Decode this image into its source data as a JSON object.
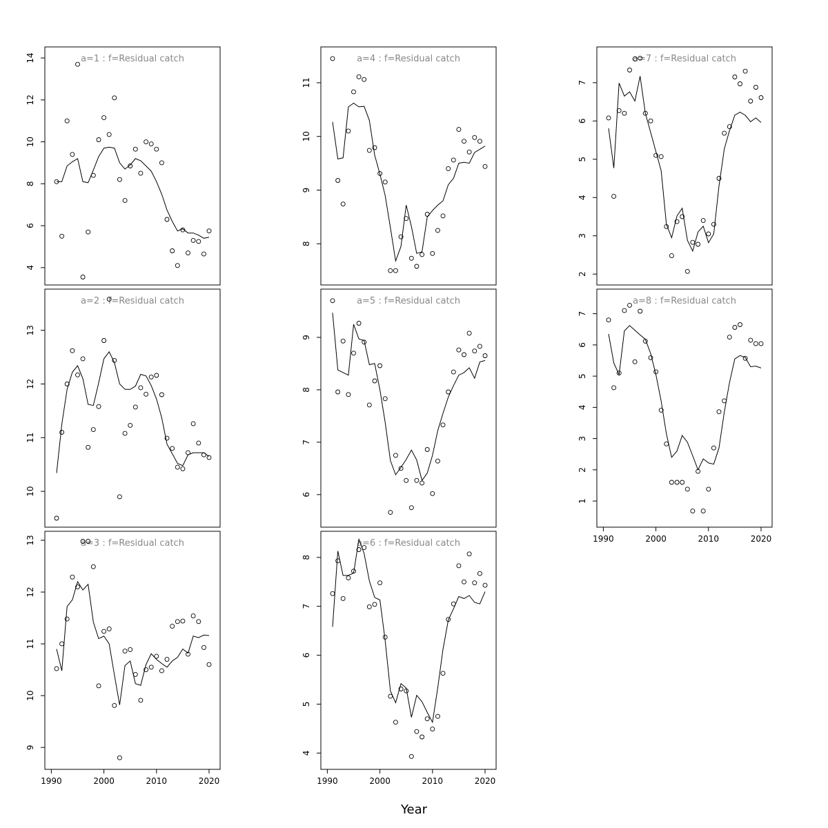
{
  "figure": {
    "xlabel": "Year"
  },
  "chart_data": [
    {
      "type": "scatter",
      "title": "a=1  :  f=Residual catch",
      "xlim": [
        1991,
        2020
      ],
      "ylim": [
        3.6,
        14.1
      ],
      "yticks": [
        4,
        6,
        8,
        10,
        12,
        14
      ],
      "xticks": [
        1990,
        2000,
        2010,
        2020
      ],
      "show_xaxis": false,
      "points": {
        "x": [
          1991,
          1992,
          1993,
          1994,
          1995,
          1996,
          1997,
          1998,
          1999,
          2000,
          2001,
          2002,
          2003,
          2004,
          2005,
          2006,
          2007,
          2008,
          2009,
          2010,
          2011,
          2012,
          2013,
          2014,
          2015,
          2016,
          2017,
          2018,
          2019,
          2020
        ],
        "y": [
          8.1,
          5.5,
          11.0,
          9.4,
          13.7,
          3.55,
          5.7,
          8.4,
          10.1,
          11.15,
          10.35,
          12.1,
          8.2,
          7.2,
          8.85,
          9.65,
          8.5,
          10.0,
          9.9,
          9.65,
          9.0,
          6.3,
          4.8,
          4.1,
          5.8,
          4.7,
          5.3,
          5.25,
          4.65,
          5.75
        ]
      },
      "line": {
        "x": [
          1991,
          1992,
          1993,
          1994,
          1995,
          1996,
          1997,
          1998,
          1999,
          2000,
          2001,
          2002,
          2003,
          2004,
          2005,
          2006,
          2007,
          2008,
          2009,
          2010,
          2011,
          2012,
          2013,
          2014,
          2015,
          2016,
          2017,
          2018,
          2019,
          2020
        ],
        "y": [
          8.1,
          8.1,
          8.85,
          9.05,
          9.2,
          8.1,
          8.05,
          8.65,
          9.3,
          9.7,
          9.75,
          9.7,
          9.0,
          8.7,
          8.9,
          9.2,
          9.1,
          8.85,
          8.6,
          8.1,
          7.5,
          6.75,
          6.2,
          5.75,
          5.85,
          5.65,
          5.65,
          5.55,
          5.4,
          5.45
        ]
      }
    },
    {
      "type": "scatter",
      "title": "a=2  :  f=Residual catch",
      "xlim": [
        1991,
        2020
      ],
      "ylim": [
        9.5,
        13.6
      ],
      "yticks": [
        10,
        11,
        12,
        13
      ],
      "xticks": [
        1990,
        2000,
        2010,
        2020
      ],
      "show_xaxis": false,
      "points": {
        "x": [
          1991,
          1992,
          1993,
          1994,
          1995,
          1996,
          1997,
          1998,
          1999,
          2000,
          2001,
          2002,
          2003,
          2004,
          2005,
          2006,
          2007,
          2008,
          2009,
          2010,
          2011,
          2012,
          2013,
          2014,
          2015,
          2016,
          2017,
          2018,
          2019,
          2020
        ],
        "y": [
          9.5,
          11.1,
          12.0,
          12.62,
          12.17,
          12.47,
          10.82,
          11.15,
          11.58,
          12.81,
          13.58,
          12.44,
          9.9,
          11.08,
          11.23,
          11.57,
          11.93,
          11.81,
          12.13,
          12.16,
          11.8,
          10.99,
          10.8,
          10.45,
          10.42,
          10.72,
          11.26,
          10.9,
          10.68,
          10.63
        ]
      },
      "line": {
        "x": [
          1991,
          1992,
          1993,
          1994,
          1995,
          1996,
          1997,
          1998,
          1999,
          2000,
          2001,
          2002,
          2003,
          2004,
          2005,
          2006,
          2007,
          2008,
          2009,
          2010,
          2011,
          2012,
          2013,
          2014,
          2015,
          2016,
          2017,
          2018,
          2019,
          2020
        ],
        "y": [
          10.34,
          11.25,
          11.9,
          12.22,
          12.34,
          12.1,
          11.62,
          11.6,
          12.02,
          12.47,
          12.6,
          12.4,
          12.0,
          11.9,
          11.9,
          11.96,
          12.18,
          12.15,
          11.97,
          11.72,
          11.37,
          10.88,
          10.7,
          10.52,
          10.48,
          10.68,
          10.72,
          10.72,
          10.72,
          10.65
        ]
      }
    },
    {
      "type": "scatter",
      "title": "a=3  :  f=Residual catch",
      "xlim": [
        1991,
        2020
      ],
      "ylim": [
        8.75,
        13.0
      ],
      "yticks": [
        9,
        10,
        11,
        12,
        13
      ],
      "xticks": [
        1990,
        2000,
        2010,
        2020
      ],
      "show_xaxis": true,
      "points": {
        "x": [
          1991,
          1992,
          1993,
          1994,
          1995,
          1996,
          1997,
          1998,
          1999,
          2000,
          2001,
          2002,
          2003,
          2004,
          2005,
          2006,
          2007,
          2008,
          2009,
          2010,
          2011,
          2012,
          2013,
          2014,
          2015,
          2016,
          2017,
          2018,
          2019,
          2020
        ],
        "y": [
          10.52,
          11.0,
          11.48,
          12.29,
          12.1,
          12.98,
          12.98,
          12.49,
          10.19,
          11.24,
          11.29,
          9.81,
          8.8,
          10.86,
          10.89,
          10.41,
          9.91,
          10.5,
          10.55,
          10.76,
          10.48,
          10.7,
          11.34,
          11.43,
          11.44,
          10.8,
          11.54,
          11.43,
          10.93,
          10.6
        ]
      },
      "line": {
        "x": [
          1991,
          1992,
          1993,
          1994,
          1995,
          1996,
          1997,
          1998,
          1999,
          2000,
          2001,
          2002,
          2003,
          2004,
          2005,
          2006,
          2007,
          2008,
          2009,
          2010,
          2011,
          2012,
          2013,
          2014,
          2015,
          2016,
          2017,
          2018,
          2019,
          2020
        ],
        "y": [
          10.9,
          10.48,
          11.72,
          11.85,
          12.2,
          12.04,
          12.15,
          11.42,
          11.1,
          11.15,
          11.0,
          10.4,
          9.82,
          10.58,
          10.67,
          10.23,
          10.2,
          10.6,
          10.81,
          10.7,
          10.62,
          10.55,
          10.67,
          10.74,
          10.9,
          10.82,
          11.15,
          11.12,
          11.17,
          11.16
        ]
      }
    },
    {
      "type": "scatter",
      "title": "a=4  :  f=Residual catch",
      "xlim": [
        1991,
        2020
      ],
      "ylim": [
        7.4,
        11.5
      ],
      "yticks": [
        8,
        9,
        10,
        11
      ],
      "xticks": [
        1990,
        2000,
        2010,
        2020
      ],
      "show_xaxis": false,
      "points": {
        "x": [
          1991,
          1992,
          1993,
          1994,
          1995,
          1996,
          1997,
          1998,
          1999,
          2000,
          2001,
          2002,
          2003,
          2004,
          2005,
          2006,
          2007,
          2008,
          2009,
          2010,
          2011,
          2012,
          2013,
          2014,
          2015,
          2016,
          2017,
          2018,
          2019,
          2020
        ],
        "y": [
          11.45,
          9.18,
          8.74,
          10.1,
          10.83,
          11.11,
          11.06,
          9.74,
          9.79,
          9.31,
          9.15,
          7.5,
          7.5,
          8.13,
          8.47,
          7.73,
          7.58,
          7.8,
          8.55,
          7.82,
          8.25,
          8.52,
          9.4,
          9.56,
          10.13,
          9.91,
          9.71,
          9.98,
          9.91,
          9.44
        ]
      },
      "line": {
        "x": [
          1991,
          1992,
          1993,
          1994,
          1995,
          1996,
          1997,
          1998,
          1999,
          2000,
          2001,
          2002,
          2003,
          2004,
          2005,
          2006,
          2007,
          2008,
          2009,
          2010,
          2011,
          2012,
          2013,
          2014,
          2015,
          2016,
          2017,
          2018,
          2019,
          2020
        ],
        "y": [
          10.27,
          9.58,
          9.6,
          10.55,
          10.62,
          10.55,
          10.56,
          10.3,
          9.65,
          9.3,
          8.9,
          8.3,
          7.68,
          7.95,
          8.72,
          8.32,
          7.82,
          7.85,
          8.5,
          8.62,
          8.72,
          8.8,
          9.1,
          9.22,
          9.5,
          9.52,
          9.5,
          9.7,
          9.76,
          9.82
        ]
      }
    },
    {
      "type": "scatter",
      "title": "a=5  :  f=Residual catch",
      "xlim": [
        1991,
        2020
      ],
      "ylim": [
        5.55,
        9.75
      ],
      "yticks": [
        6,
        7,
        8,
        9
      ],
      "xticks": [
        1990,
        2000,
        2010,
        2020
      ],
      "show_xaxis": false,
      "points": {
        "x": [
          1991,
          1992,
          1993,
          1994,
          1995,
          1996,
          1997,
          1998,
          1999,
          2000,
          2001,
          2002,
          2003,
          2004,
          2005,
          2006,
          2007,
          2008,
          2009,
          2010,
          2011,
          2012,
          2013,
          2014,
          2015,
          2016,
          2017,
          2018,
          2019,
          2020
        ],
        "y": [
          9.7,
          7.96,
          8.93,
          7.91,
          8.7,
          9.27,
          8.91,
          7.71,
          8.17,
          8.46,
          7.83,
          5.66,
          6.75,
          6.5,
          6.27,
          5.75,
          6.27,
          6.22,
          6.86,
          6.02,
          6.64,
          7.33,
          7.96,
          8.34,
          8.76,
          8.67,
          9.08,
          8.74,
          8.83,
          8.65
        ]
      },
      "line": {
        "x": [
          1991,
          1992,
          1993,
          1994,
          1995,
          1996,
          1997,
          1998,
          1999,
          2000,
          2001,
          2002,
          2003,
          2004,
          2005,
          2006,
          2007,
          2008,
          2009,
          2010,
          2011,
          2012,
          2013,
          2014,
          2015,
          2016,
          2017,
          2018,
          2019,
          2020
        ],
        "y": [
          9.47,
          8.38,
          8.33,
          8.28,
          9.25,
          8.97,
          8.94,
          8.48,
          8.5,
          8.0,
          7.38,
          6.65,
          6.38,
          6.52,
          6.67,
          6.85,
          6.66,
          6.27,
          6.41,
          6.75,
          7.22,
          7.55,
          7.86,
          8.08,
          8.28,
          8.33,
          8.42,
          8.22,
          8.53,
          8.56
        ]
      }
    },
    {
      "type": "scatter",
      "title": "a=6  :  f=Residual catch",
      "xlim": [
        1991,
        2020
      ],
      "ylim": [
        3.85,
        8.35
      ],
      "yticks": [
        4,
        5,
        6,
        7,
        8
      ],
      "xticks": [
        1990,
        2000,
        2010,
        2020
      ],
      "show_xaxis": true,
      "points": {
        "x": [
          1991,
          1992,
          1993,
          1994,
          1995,
          1996,
          1997,
          1998,
          1999,
          2000,
          2001,
          2002,
          2003,
          2004,
          2005,
          2006,
          2007,
          2008,
          2009,
          2010,
          2011,
          2012,
          2013,
          2014,
          2015,
          2016,
          2017,
          2018,
          2019,
          2020
        ],
        "y": [
          7.26,
          7.93,
          7.16,
          7.58,
          7.72,
          8.16,
          8.2,
          6.99,
          7.04,
          7.48,
          6.37,
          5.16,
          4.63,
          5.31,
          5.27,
          3.93,
          4.44,
          4.33,
          4.7,
          4.49,
          4.75,
          5.63,
          6.73,
          7.05,
          7.83,
          7.5,
          8.07,
          7.48,
          7.67,
          7.43
        ]
      },
      "line": {
        "x": [
          1991,
          1992,
          1993,
          1994,
          1995,
          1996,
          1997,
          1998,
          1999,
          2000,
          2001,
          2002,
          2003,
          2004,
          2005,
          2006,
          2007,
          2008,
          2009,
          2010,
          2011,
          2012,
          2013,
          2014,
          2015,
          2016,
          2017,
          2018,
          2019,
          2020
        ],
        "y": [
          6.58,
          8.13,
          7.63,
          7.63,
          7.68,
          8.37,
          8.08,
          7.52,
          7.18,
          7.13,
          6.3,
          5.27,
          5.03,
          5.42,
          5.33,
          4.73,
          5.18,
          5.05,
          4.83,
          4.63,
          5.33,
          6.12,
          6.72,
          6.95,
          7.2,
          7.16,
          7.22,
          7.08,
          7.05,
          7.3
        ]
      }
    },
    {
      "type": "scatter",
      "title": "a=7  :  f=Residual catch",
      "xlim": [
        1991,
        2020
      ],
      "ylim": [
        1.95,
        7.7
      ],
      "yticks": [
        2,
        3,
        4,
        5,
        6,
        7
      ],
      "xticks": [
        1990,
        2000,
        2010,
        2020
      ],
      "show_xaxis": false,
      "points": {
        "x": [
          1991,
          1992,
          1993,
          1994,
          1995,
          1996,
          1997,
          1998,
          1999,
          2000,
          2001,
          2002,
          2003,
          2004,
          2005,
          2006,
          2007,
          2008,
          2009,
          2010,
          2011,
          2012,
          2013,
          2014,
          2015,
          2016,
          2017,
          2018,
          2019,
          2020
        ],
        "y": [
          6.08,
          4.03,
          6.27,
          6.2,
          7.33,
          7.62,
          7.64,
          6.2,
          6.0,
          5.1,
          5.07,
          3.24,
          2.48,
          3.37,
          3.5,
          2.07,
          2.83,
          2.78,
          3.4,
          3.05,
          3.3,
          4.5,
          5.68,
          5.85,
          7.15,
          6.97,
          7.3,
          6.52,
          6.88,
          6.61
        ]
      },
      "line": {
        "x": [
          1991,
          1992,
          1993,
          1994,
          1995,
          1996,
          1997,
          1998,
          1999,
          2000,
          2001,
          2002,
          2003,
          2004,
          2005,
          2006,
          2007,
          2008,
          2009,
          2010,
          2011,
          2012,
          2013,
          2014,
          2015,
          2016,
          2017,
          2018,
          2019,
          2020
        ],
        "y": [
          5.81,
          4.77,
          6.99,
          6.65,
          6.76,
          6.52,
          7.17,
          6.2,
          5.7,
          5.2,
          4.7,
          3.3,
          2.95,
          3.52,
          3.72,
          2.88,
          2.6,
          3.1,
          3.25,
          2.82,
          3.05,
          4.3,
          5.27,
          5.75,
          6.15,
          6.23,
          6.15,
          5.98,
          6.08,
          5.96
        ]
      }
    },
    {
      "type": "scatter",
      "title": "a=8  :  f=Residual catch",
      "xlim": [
        1991,
        2020
      ],
      "ylim": [
        0.45,
        7.5
      ],
      "yticks": [
        1,
        2,
        3,
        4,
        5,
        6,
        7
      ],
      "xticks": [
        1990,
        2000,
        2010,
        2020
      ],
      "show_xaxis": true,
      "points": {
        "x": [
          1991,
          1992,
          1993,
          1994,
          1995,
          1996,
          1997,
          1998,
          1999,
          2000,
          2001,
          2002,
          2003,
          2004,
          2005,
          2006,
          2007,
          2008,
          2009,
          2010,
          2011,
          2012,
          2013,
          2014,
          2015,
          2016,
          2017,
          2018,
          2019,
          2020
        ],
        "y": [
          6.8,
          4.63,
          5.1,
          7.1,
          7.27,
          5.46,
          7.08,
          6.12,
          5.59,
          5.14,
          3.91,
          2.83,
          1.6,
          1.6,
          1.6,
          1.38,
          0.68,
          1.95,
          0.68,
          1.38,
          2.7,
          3.86,
          4.21,
          6.25,
          6.56,
          6.65,
          5.57,
          6.15,
          6.04,
          6.04
        ]
      },
      "line": {
        "x": [
          1991,
          1992,
          1993,
          1994,
          1995,
          1996,
          1997,
          1998,
          1999,
          2000,
          2001,
          2002,
          2003,
          2004,
          2005,
          2006,
          2007,
          2008,
          2009,
          2010,
          2011,
          2012,
          2013,
          2014,
          2015,
          2016,
          2017,
          2018,
          2019,
          2020
        ],
        "y": [
          6.35,
          5.42,
          5.05,
          6.45,
          6.62,
          6.47,
          6.32,
          6.18,
          5.72,
          5.05,
          4.2,
          3.15,
          2.4,
          2.6,
          3.1,
          2.88,
          2.45,
          2.0,
          2.35,
          2.22,
          2.18,
          2.7,
          3.85,
          4.8,
          5.55,
          5.66,
          5.6,
          5.3,
          5.32,
          5.26
        ]
      }
    }
  ]
}
